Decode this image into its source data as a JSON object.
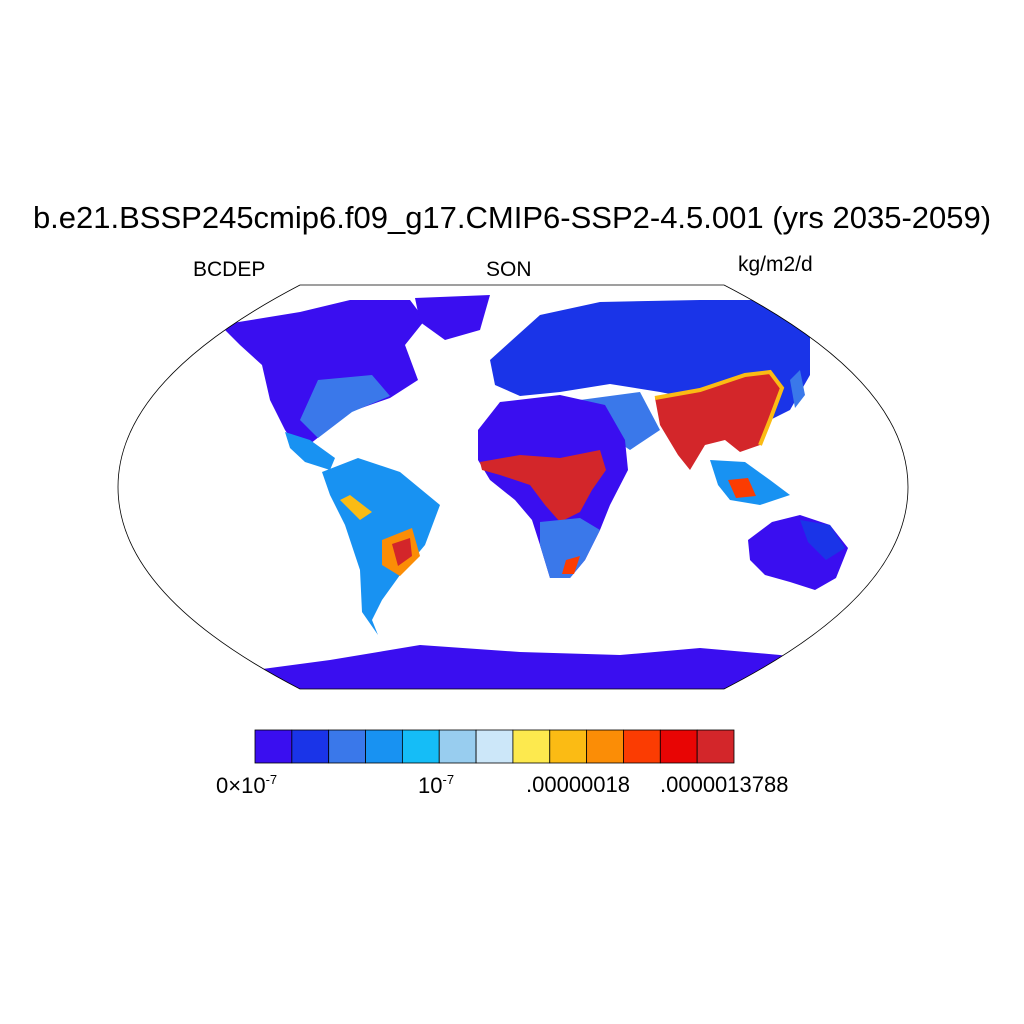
{
  "title": "b.e21.BSSP245cmip6.f09_g17.CMIP6-SSP2-4.5.001 (yrs 2035-2059)",
  "left_label": "BCDEP",
  "center_label": "SON",
  "right_label": "kg/m2/d",
  "colorbar": {
    "colors": [
      "#3a0ef0",
      "#1a34e8",
      "#3a78ea",
      "#1892f2",
      "#15bdf7",
      "#98cdef",
      "#cce7f9",
      "#fde94e",
      "#fbbb14",
      "#fb8d06",
      "#fb3c02",
      "#e80504",
      "#d3262a"
    ],
    "ticks": {
      "zero_base": "0×10",
      "zero_exp": "-7",
      "one_base": "10",
      "one_exp": "-7",
      "t3": ".00000018",
      "t4": ".0000013788"
    }
  }
}
